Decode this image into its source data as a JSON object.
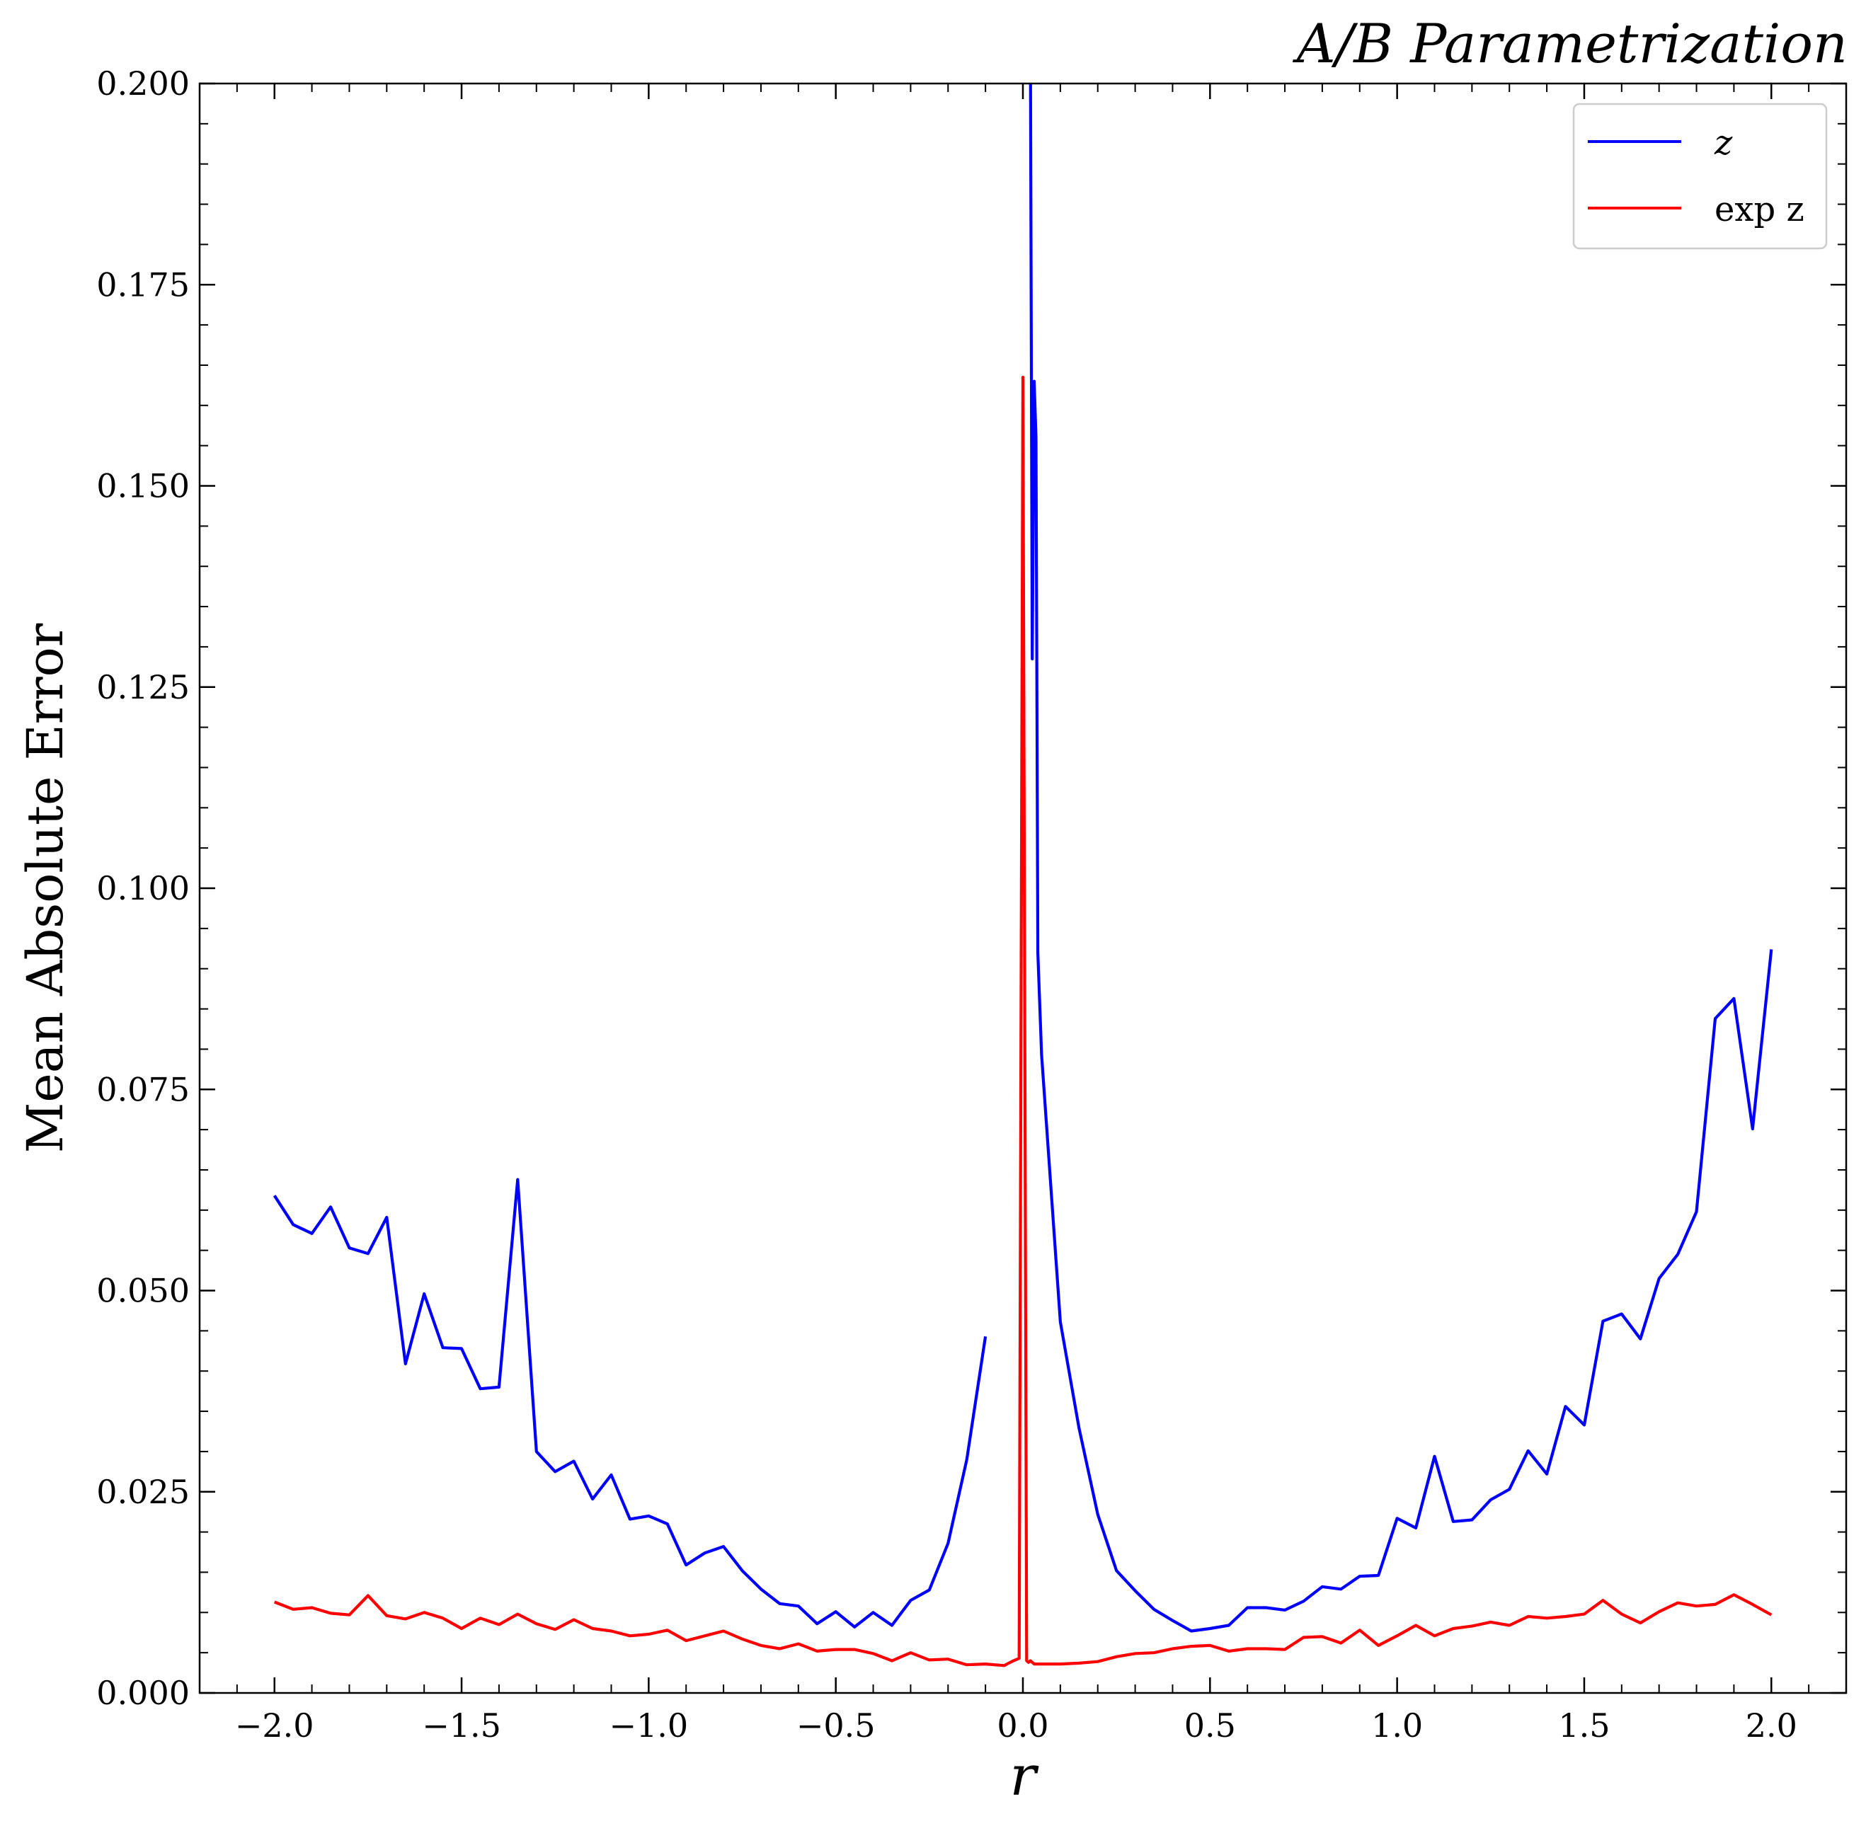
{
  "chart_data": {
    "type": "line",
    "title": "A/B Parametrization",
    "xlabel": "r",
    "ylabel": "Mean Absolute Error",
    "xlim": [
      -2.2,
      2.2
    ],
    "ylim": [
      0,
      0.2
    ],
    "xticks": [
      -2.0,
      -1.5,
      -1.0,
      -0.5,
      0.0,
      0.5,
      1.0,
      1.5,
      2.0
    ],
    "xtick_labels": [
      "−2.0",
      "−1.5",
      "−1.0",
      "−0.5",
      "0.0",
      "0.5",
      "1.0",
      "1.5",
      "2.0"
    ],
    "yticks": [
      0.0,
      0.025,
      0.05,
      0.075,
      0.1,
      0.125,
      0.15,
      0.175,
      0.2
    ],
    "ytick_labels": [
      "0.000",
      "0.025",
      "0.050",
      "0.075",
      "0.100",
      "0.125",
      "0.150",
      "0.175",
      "0.200"
    ],
    "grid": false,
    "legend_position": "top-right",
    "series": [
      {
        "name": "z",
        "color": "#0000ff",
        "segments": [
          [
            [
              -2.0,
              0.0618
            ],
            [
              -1.95,
              0.0582
            ],
            [
              -1.9,
              0.0571
            ],
            [
              -1.85,
              0.0604
            ],
            [
              -1.8,
              0.0553
            ],
            [
              -1.75,
              0.0546
            ],
            [
              -1.7,
              0.0591
            ],
            [
              -1.65,
              0.0409
            ],
            [
              -1.6,
              0.0496
            ],
            [
              -1.55,
              0.0429
            ],
            [
              -1.5,
              0.0428
            ],
            [
              -1.45,
              0.0378
            ],
            [
              -1.4,
              0.038
            ],
            [
              -1.35,
              0.0638
            ],
            [
              -1.3,
              0.03
            ],
            [
              -1.25,
              0.0275
            ],
            [
              -1.2,
              0.0288
            ],
            [
              -1.15,
              0.0241
            ],
            [
              -1.1,
              0.0271
            ],
            [
              -1.05,
              0.0216
            ],
            [
              -1.0,
              0.022
            ],
            [
              -0.95,
              0.021
            ],
            [
              -0.9,
              0.0159
            ],
            [
              -0.85,
              0.0174
            ],
            [
              -0.8,
              0.0182
            ],
            [
              -0.75,
              0.0152
            ],
            [
              -0.7,
              0.0129
            ],
            [
              -0.65,
              0.0111
            ],
            [
              -0.6,
              0.0108
            ],
            [
              -0.55,
              0.0086
            ],
            [
              -0.5,
              0.0101
            ],
            [
              -0.45,
              0.0082
            ],
            [
              -0.4,
              0.01
            ],
            [
              -0.35,
              0.0084
            ],
            [
              -0.3,
              0.0115
            ],
            [
              -0.25,
              0.0128
            ],
            [
              -0.2,
              0.0186
            ],
            [
              -0.15,
              0.029
            ],
            [
              -0.1,
              0.0443
            ]
          ],
          [
            [
              0.0,
              0.205
            ],
            [
              0.01,
              0.205
            ],
            [
              0.02,
              0.205
            ],
            [
              0.025,
              0.1285
            ],
            [
              0.03,
              0.163
            ],
            [
              0.035,
              0.156
            ],
            [
              0.04,
              0.092
            ],
            [
              0.05,
              0.0793
            ],
            [
              0.1,
              0.0461
            ],
            [
              0.15,
              0.0329
            ],
            [
              0.2,
              0.0222
            ],
            [
              0.25,
              0.0152
            ],
            [
              0.3,
              0.0127
            ],
            [
              0.35,
              0.0104
            ],
            [
              0.4,
              0.009
            ],
            [
              0.45,
              0.0077
            ],
            [
              0.5,
              0.008
            ],
            [
              0.55,
              0.0084
            ],
            [
              0.6,
              0.0106
            ],
            [
              0.65,
              0.0106
            ],
            [
              0.7,
              0.0103
            ],
            [
              0.75,
              0.0114
            ],
            [
              0.8,
              0.0132
            ],
            [
              0.85,
              0.0129
            ],
            [
              0.9,
              0.0145
            ],
            [
              0.95,
              0.0146
            ],
            [
              1.0,
              0.0217
            ],
            [
              1.05,
              0.0205
            ],
            [
              1.1,
              0.0294
            ],
            [
              1.15,
              0.0213
            ],
            [
              1.2,
              0.0215
            ],
            [
              1.25,
              0.024
            ],
            [
              1.3,
              0.0253
            ],
            [
              1.35,
              0.0301
            ],
            [
              1.4,
              0.0272
            ],
            [
              1.45,
              0.0356
            ],
            [
              1.5,
              0.0333
            ],
            [
              1.55,
              0.0462
            ],
            [
              1.6,
              0.0471
            ],
            [
              1.65,
              0.044
            ],
            [
              1.7,
              0.0515
            ],
            [
              1.75,
              0.0545
            ],
            [
              1.8,
              0.0598
            ],
            [
              1.85,
              0.0838
            ],
            [
              1.9,
              0.0863
            ],
            [
              1.95,
              0.0701
            ],
            [
              2.0,
              0.0924
            ]
          ]
        ]
      },
      {
        "name": "exp z",
        "color": "#ff0000",
        "segments": [
          [
            [
              -2.0,
              0.0113
            ],
            [
              -1.95,
              0.0104
            ],
            [
              -1.9,
              0.0106
            ],
            [
              -1.85,
              0.0099
            ],
            [
              -1.8,
              0.0097
            ],
            [
              -1.75,
              0.0121
            ],
            [
              -1.7,
              0.0096
            ],
            [
              -1.65,
              0.0092
            ],
            [
              -1.6,
              0.01
            ],
            [
              -1.55,
              0.0093
            ],
            [
              -1.5,
              0.008
            ],
            [
              -1.45,
              0.0093
            ],
            [
              -1.4,
              0.0085
            ],
            [
              -1.35,
              0.0098
            ],
            [
              -1.3,
              0.0086
            ],
            [
              -1.25,
              0.0079
            ],
            [
              -1.2,
              0.0091
            ],
            [
              -1.15,
              0.008
            ],
            [
              -1.1,
              0.0077
            ],
            [
              -1.05,
              0.0071
            ],
            [
              -1.0,
              0.0073
            ],
            [
              -0.95,
              0.0078
            ],
            [
              -0.9,
              0.0065
            ],
            [
              -0.85,
              0.0071
            ],
            [
              -0.8,
              0.0077
            ],
            [
              -0.75,
              0.0067
            ],
            [
              -0.7,
              0.0059
            ],
            [
              -0.65,
              0.0055
            ],
            [
              -0.6,
              0.0061
            ],
            [
              -0.55,
              0.0052
            ],
            [
              -0.5,
              0.0054
            ],
            [
              -0.45,
              0.0054
            ],
            [
              -0.4,
              0.0049
            ],
            [
              -0.35,
              0.004
            ],
            [
              -0.3,
              0.005
            ],
            [
              -0.25,
              0.0041
            ],
            [
              -0.2,
              0.0042
            ],
            [
              -0.15,
              0.0035
            ],
            [
              -0.1,
              0.0036
            ],
            [
              -0.05,
              0.0034
            ],
            [
              -0.03,
              0.0039
            ],
            [
              -0.01,
              0.0043
            ],
            [
              0.0,
              0.1635
            ],
            [
              0.01,
              0.004
            ],
            [
              0.015,
              0.0038
            ],
            [
              0.02,
              0.004
            ],
            [
              0.03,
              0.0036
            ],
            [
              0.05,
              0.0036
            ],
            [
              0.1,
              0.0036
            ],
            [
              0.15,
              0.0037
            ],
            [
              0.2,
              0.0039
            ],
            [
              0.25,
              0.0045
            ],
            [
              0.3,
              0.0049
            ],
            [
              0.35,
              0.005
            ],
            [
              0.4,
              0.0055
            ],
            [
              0.45,
              0.0058
            ],
            [
              0.5,
              0.0059
            ],
            [
              0.55,
              0.0052
            ],
            [
              0.6,
              0.0055
            ],
            [
              0.65,
              0.0055
            ],
            [
              0.7,
              0.0054
            ],
            [
              0.75,
              0.0069
            ],
            [
              0.8,
              0.007
            ],
            [
              0.85,
              0.0062
            ],
            [
              0.9,
              0.0078
            ],
            [
              0.95,
              0.0059
            ],
            [
              1.0,
              0.0071
            ],
            [
              1.05,
              0.0084
            ],
            [
              1.1,
              0.0071
            ],
            [
              1.15,
              0.008
            ],
            [
              1.2,
              0.0083
            ],
            [
              1.25,
              0.0088
            ],
            [
              1.3,
              0.0084
            ],
            [
              1.35,
              0.0095
            ],
            [
              1.4,
              0.0093
            ],
            [
              1.45,
              0.0095
            ],
            [
              1.5,
              0.0098
            ],
            [
              1.55,
              0.0115
            ],
            [
              1.6,
              0.0098
            ],
            [
              1.65,
              0.0087
            ],
            [
              1.7,
              0.0101
            ],
            [
              1.75,
              0.0112
            ],
            [
              1.8,
              0.0108
            ],
            [
              1.85,
              0.011
            ],
            [
              1.9,
              0.0122
            ],
            [
              1.95,
              0.011
            ],
            [
              2.0,
              0.0097
            ]
          ]
        ]
      }
    ]
  }
}
